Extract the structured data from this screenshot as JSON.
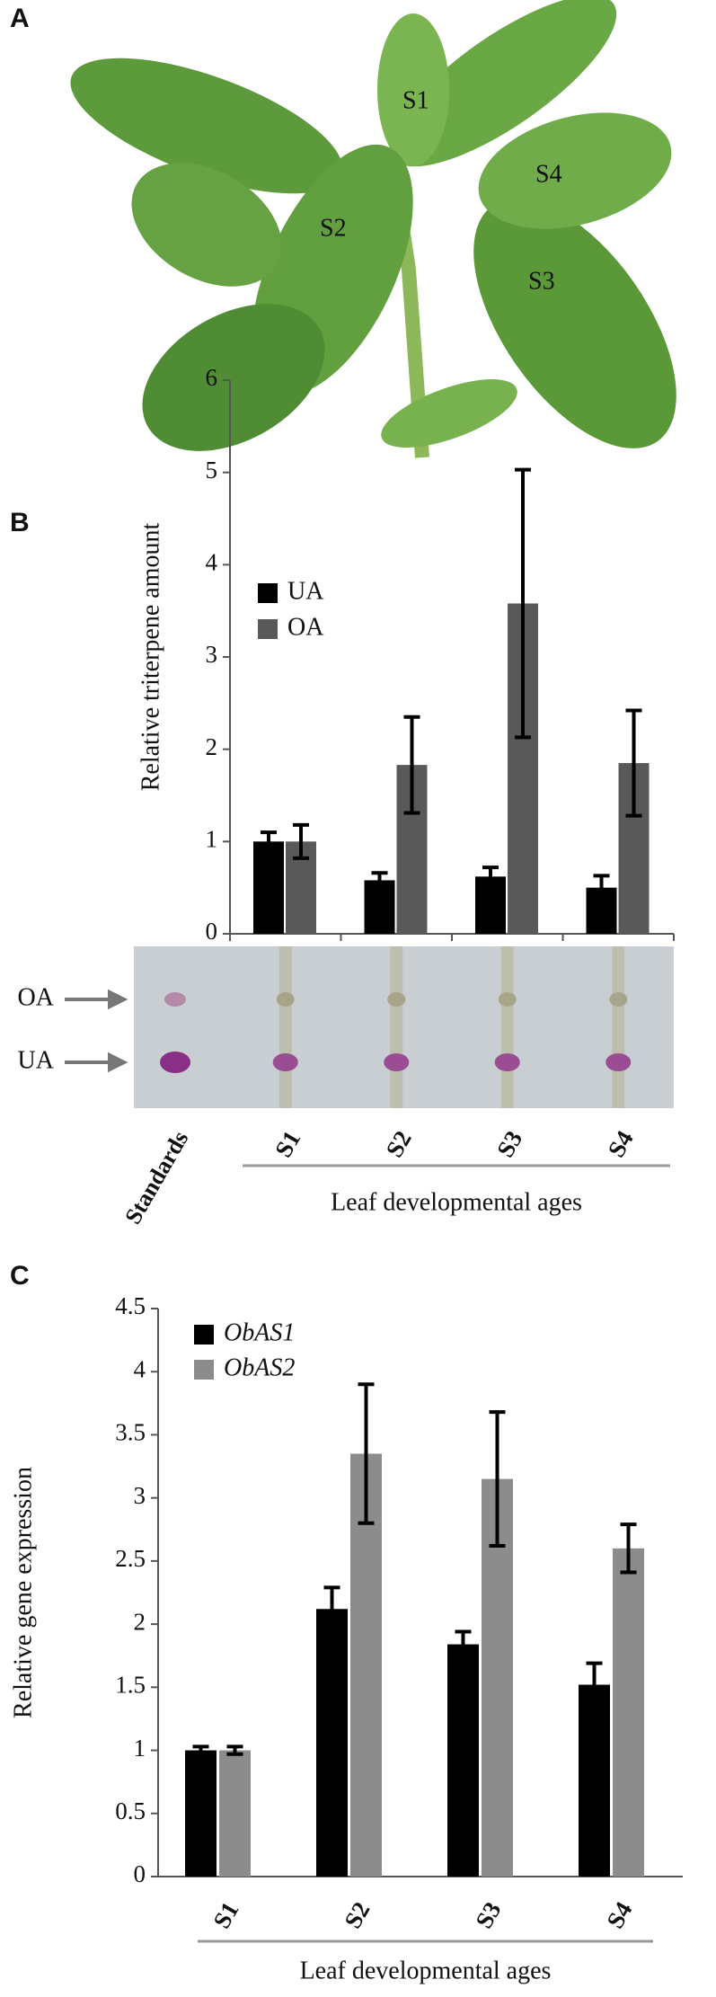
{
  "panels": {
    "a": {
      "label": "A",
      "leaf_labels": [
        "S1",
        "S2",
        "S3",
        "S4"
      ]
    },
    "b": {
      "label": "B"
    },
    "c": {
      "label": "C"
    }
  },
  "tlc": {
    "spot_labels": [
      "OA",
      "UA"
    ],
    "standards_label": "Standards"
  },
  "chart_data": [
    {
      "type": "bar",
      "ylabel": "Relative triterpene amount",
      "xlabel": "Leaf developmental ages",
      "categories": [
        "S1",
        "S2",
        "S3",
        "S4"
      ],
      "series": [
        {
          "name": "UA",
          "color": "#000000",
          "values": [
            1.0,
            0.58,
            0.62,
            0.5
          ],
          "errors": [
            0.1,
            0.08,
            0.1,
            0.13
          ]
        },
        {
          "name": "OA",
          "color": "#595959",
          "values": [
            1.0,
            1.83,
            3.58,
            1.85
          ],
          "errors": [
            0.18,
            0.52,
            1.45,
            0.57
          ]
        }
      ],
      "ylim": [
        0,
        6
      ],
      "yticks": [
        0,
        1,
        2,
        3,
        4,
        5,
        6
      ]
    },
    {
      "type": "bar",
      "ylabel": "Relative gene expression",
      "xlabel": "Leaf developmental ages",
      "categories": [
        "S1",
        "S2",
        "S3",
        "S4"
      ],
      "series": [
        {
          "name": "ObAS1",
          "color": "#000000",
          "values": [
            1.0,
            2.12,
            1.84,
            1.52
          ],
          "errors": [
            0.03,
            0.17,
            0.1,
            0.17
          ]
        },
        {
          "name": "ObAS2",
          "color": "#8c8c8c",
          "values": [
            1.0,
            3.35,
            3.15,
            2.6
          ],
          "errors": [
            0.03,
            0.55,
            0.53,
            0.19
          ]
        }
      ],
      "ylim": [
        0,
        4.5
      ],
      "yticks": [
        0,
        0.5,
        1,
        1.5,
        2,
        2.5,
        3,
        3.5,
        4,
        4.5
      ]
    }
  ]
}
